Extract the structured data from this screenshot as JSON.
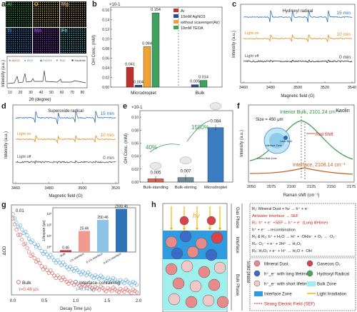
{
  "panels": {
    "a": {
      "label": "a",
      "maps": [
        "Al",
        "O",
        "Mg",
        "Ti",
        "Mn",
        "Fe"
      ],
      "map_colors": [
        "#3ea84a",
        "#d7b84a",
        "#c4a06e",
        "#4a8bd7",
        "#8d3cc8",
        "#5fbfc0"
      ],
      "legend": [
        "Al2O3",
        "SiO2",
        "Fe2O3",
        "TiO2",
        "Kaolinite"
      ],
      "xlabel": "2θ (degree)",
      "ylabel": "Intensity (a.u.)",
      "xticks": [
        "10",
        "20",
        "30",
        "40",
        "50",
        "60",
        "70",
        "80"
      ]
    },
    "b": {
      "label": "b",
      "chart_data": {
        "type": "bar",
        "categories": [
          "Microdroplet",
          "Bulk"
        ],
        "series": [
          {
            "name": "Ar",
            "values": [
              0.041,
              0.0
            ],
            "color": "#c0312d"
          },
          {
            "name": "10mM AgNO3",
            "values": [
              0.004,
              0.005
            ],
            "color": "#2f4a93"
          },
          {
            "name": "without scavenger(Air)",
            "values": [
              0.084,
              0.0
            ],
            "color": "#f0a233"
          },
          {
            "name": "10mM TEOA",
            "values": [
              0.154,
              0.014
            ],
            "color": "#3ca25d"
          }
        ],
        "labels": [
          "0.041",
          "0.004",
          "0.084",
          "0.154",
          "0.005",
          "0.014"
        ],
        "ylabel": "OH Conc. (mM)",
        "exponent": "×10-1",
        "yticks": [
          "0.00",
          "0.02",
          "0.04",
          "0.06",
          "0.08",
          "0.10",
          "0.12",
          "0.14",
          "0.16"
        ]
      }
    },
    "c": {
      "label": "c",
      "title": "Hydroxyl radical",
      "traces": [
        "15 min",
        "10 min",
        "0 min"
      ],
      "annotations": [
        "Light on",
        "Light off"
      ],
      "xlabel": "Magnetic field (G)",
      "ylabel": "Intensity (a.u.)",
      "xticks": [
        "3460",
        "3480",
        "3500",
        "3520",
        "3540"
      ]
    },
    "d": {
      "label": "d",
      "title": "Superoxide radical",
      "traces": [
        "15 min",
        "10 min",
        "0 min"
      ],
      "annotations": [
        "Light on",
        "Light off"
      ],
      "xlabel": "Magnetic field (G)",
      "ylabel": "Intensity (a.u.)",
      "xticks": [
        "3460",
        "3480",
        "3500",
        "3520"
      ]
    },
    "e": {
      "label": "e",
      "chart_data": {
        "type": "bar",
        "categories": [
          "Bulk-standing",
          "Bulk-stirring",
          "Microdroplet"
        ],
        "values": [
          0.005,
          0.007,
          0.084
        ],
        "colors": [
          "#e0604a",
          "#6e8a9a",
          "#3a7dc0"
        ],
        "labels": [
          "0.005",
          "0.007",
          "0.084"
        ],
        "ylabel": "OH Conc. (mM)",
        "exponent": "×10-1",
        "yticks": [
          "0.00",
          "0.02",
          "0.04",
          "0.06",
          "0.08",
          "0.10"
        ],
        "ylim": [
          0,
          0.11
        ],
        "annotations": [
          "40%",
          "1580%"
        ]
      }
    },
    "f": {
      "label": "f",
      "title": "Kaolin",
      "peak1": "Interior Bulk, 2101.24 cm⁻¹",
      "peak2": "Interface, 2108.14 cm⁻¹",
      "size": "Size = 450 μm",
      "shift": "Red Shift",
      "inset_labels": [
        "Interior Bulk Zone",
        "Interface Zone",
        "Laser Spot"
      ],
      "xlabel": "Raman shift (cm⁻¹)",
      "ylabel": "Intensity (a.u.)",
      "xticks": [
        "2050",
        "2075",
        "2100",
        "2125",
        "2150",
        "2175"
      ]
    },
    "g": {
      "label": "g",
      "xlabel": "Decay Time (μs)",
      "ylabel": "ΔOD",
      "xticks": [
        "0.0",
        "0.5",
        "1.0",
        "1.5",
        "2.0"
      ],
      "yticks": [
        "0.01"
      ],
      "legend": [
        {
          "name": "Bulk",
          "tau": "τ=0.46 μs",
          "color": "#d9534f"
        },
        {
          "name": "Interface-containing",
          "tau": "τ=0.71 μs",
          "color": "#4a9fd8"
        }
      ],
      "inset": {
        "chart_data": {
          "type": "bar",
          "categories": [
            "Bulk",
            "1% Interface",
            "0.1% Interface",
            "0.01% Interface"
          ],
          "values": [
            0.46,
            25.46,
            250.46,
            2500.46
          ],
          "labels": [
            "0.46",
            "25.46",
            "250.46",
            "2500.46"
          ],
          "colors": [
            "#c5283d",
            "#f19a8e",
            "#8ec3e8",
            "#2e73b8"
          ],
          "ylabel": "Lifespan (μs)",
          "scale": "log",
          "yticks": [
            "10⁰",
            "10¹",
            "10²",
            "10³"
          ]
        }
      }
    },
    "h": {
      "label": "h",
      "phases": [
        "Gas Phase",
        "Interface",
        "Bulk Phase",
        "Solid phase"
      ],
      "hv": "hv",
      "reactions": [
        "R₁: Mineral Dust + hν → h⁺ + e⁻",
        "Air/water Interface → SEF",
        "R₂: h⁺ + e⁻ +SEF→ h⁺ + e⁻ (Long lifetime)",
        "h⁺ + e⁻ →recombination",
        "R₃ & R₃: h⁺ + H₂O → H⁺ + ·OH/e⁻ + O₂ → ·O₂⁻",
        "R₄: O₂⁻ + e⁻ + 2H⁺ → H₂O₂",
        "R₅: H₂O₂ + e⁻ + H⁺ → H₂O + ·OH"
      ],
      "legend": [
        "Mineral Dust",
        "Gaseous O₂",
        "h⁺_e⁻ with long lifetime",
        "Hydroxyl Radical",
        "h⁺_e⁻ with short lifetime",
        "Bulk Zone",
        "Interface Zone",
        "Light Irradiation",
        "Strong Electric Field (SEF)"
      ]
    }
  }
}
